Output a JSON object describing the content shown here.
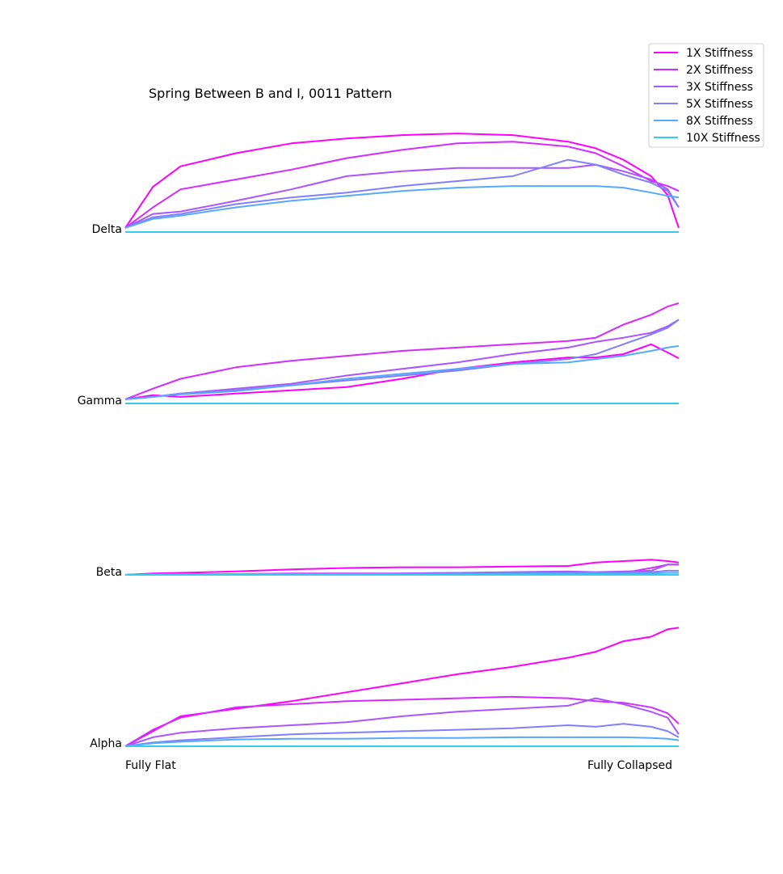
{
  "chart_data": {
    "type": "line",
    "title": "Spring Between B and I, 0011 Pattern",
    "xlabel_left": "Fully Flat",
    "xlabel_right": "Fully Collapsed",
    "xlim": [
      0,
      1
    ],
    "series_styles": [
      {
        "name": "1X Stiffness",
        "color": "#ff00ff"
      },
      {
        "name": "2X Stiffness",
        "color": "#d42bff"
      },
      {
        "name": "3X Stiffness",
        "color": "#aa55ff"
      },
      {
        "name": "5X Stiffness",
        "color": "#8080ff"
      },
      {
        "name": "8X Stiffness",
        "color": "#55aaff"
      },
      {
        "name": "10X Stiffness",
        "color": "#33ccee"
      }
    ],
    "panels": [
      {
        "label": "Delta",
        "ylim": [
          0,
          125
        ],
        "x": [
          0,
          0.05,
          0.1,
          0.2,
          0.3,
          0.4,
          0.5,
          0.6,
          0.7,
          0.8,
          0.85,
          0.9,
          0.95,
          0.98,
          1.0
        ],
        "series": [
          {
            "values": [
              5,
              55,
              80,
              96,
              108,
              114,
              118,
              120,
              118,
              110,
              102,
              88,
              68,
              45,
              5
            ]
          },
          {
            "values": [
              5,
              30,
              52,
              64,
              76,
              90,
              100,
              108,
              110,
              104,
              96,
              80,
              62,
              56,
              50
            ]
          },
          {
            "values": [
              5,
              22,
              25,
              38,
              52,
              68,
              74,
              78,
              78,
              78,
              82,
              74,
              64,
              52,
              30
            ]
          },
          {
            "values": [
              5,
              18,
              22,
              34,
              42,
              48,
              56,
              62,
              68,
              88,
              82,
              70,
              60,
              50,
              30
            ]
          },
          {
            "values": [
              5,
              16,
              20,
              30,
              38,
              44,
              50,
              54,
              56,
              56,
              56,
              54,
              48,
              44,
              42
            ]
          },
          {
            "values": [
              0,
              0,
              0,
              0,
              0,
              0,
              0,
              0,
              0,
              0,
              0,
              0,
              0,
              0,
              0
            ]
          }
        ]
      },
      {
        "label": "Gamma",
        "ylim": [
          0,
          125
        ],
        "x": [
          0,
          0.05,
          0.1,
          0.2,
          0.3,
          0.4,
          0.5,
          0.6,
          0.7,
          0.8,
          0.85,
          0.9,
          0.95,
          0.98,
          1.0
        ],
        "series": [
          {
            "values": [
              5,
              10,
              8,
              12,
              16,
              20,
              30,
              42,
              50,
              56,
              56,
              60,
              72,
              62,
              55
            ]
          },
          {
            "values": [
              5,
              18,
              30,
              44,
              52,
              58,
              64,
              68,
              72,
              76,
              80,
              96,
              108,
              118,
              122
            ]
          },
          {
            "values": [
              5,
              8,
              12,
              18,
              24,
              34,
              42,
              50,
              60,
              68,
              75,
              80,
              86,
              94,
              102
            ]
          },
          {
            "values": [
              5,
              8,
              12,
              16,
              22,
              28,
              34,
              40,
              48,
              54,
              60,
              72,
              84,
              92,
              102
            ]
          },
          {
            "values": [
              5,
              8,
              11,
              15,
              22,
              30,
              36,
              42,
              48,
              50,
              54,
              58,
              64,
              68,
              70
            ]
          },
          {
            "values": [
              0,
              0,
              0,
              0,
              0,
              0,
              0,
              0,
              0,
              0,
              0,
              0,
              0,
              0,
              0
            ]
          }
        ]
      },
      {
        "label": "Beta",
        "ylim": [
          0,
          60
        ],
        "x": [
          0,
          0.05,
          0.1,
          0.2,
          0.3,
          0.4,
          0.5,
          0.6,
          0.7,
          0.8,
          0.85,
          0.9,
          0.95,
          0.98,
          1.0
        ],
        "series": [
          {
            "values": [
              0,
              2,
              3,
              5,
              8,
              10,
              11,
              11,
              12,
              13,
              18,
              20,
              22,
              20,
              18
            ]
          },
          {
            "values": [
              0,
              1,
              1,
              1,
              2,
              2,
              2,
              3,
              3,
              3,
              3,
              3,
              10,
              15,
              15
            ]
          },
          {
            "values": [
              0,
              1,
              1,
              1,
              1,
              1,
              2,
              3,
              4,
              5,
              4,
              5,
              6,
              15,
              15
            ]
          },
          {
            "values": [
              0,
              1,
              1,
              1,
              1,
              1,
              1,
              2,
              2,
              3,
              3,
              3,
              4,
              6,
              6
            ]
          },
          {
            "values": [
              0,
              0,
              1,
              1,
              1,
              1,
              1,
              1,
              2,
              2,
              2,
              2,
              2,
              3,
              3
            ]
          },
          {
            "values": [
              0,
              0,
              0,
              0,
              0,
              0,
              0,
              0,
              0,
              0,
              0,
              0,
              0,
              0,
              0
            ]
          }
        ]
      },
      {
        "label": "Alpha",
        "ylim": [
          0,
          180
        ],
        "x": [
          0,
          0.05,
          0.1,
          0.2,
          0.3,
          0.4,
          0.5,
          0.6,
          0.7,
          0.8,
          0.85,
          0.9,
          0.95,
          0.98,
          1.0
        ],
        "series": [
          {
            "values": [
              0,
              20,
              40,
              50,
              60,
              72,
              84,
              96,
              106,
              118,
              126,
              140,
              146,
              156,
              158
            ]
          },
          {
            "values": [
              0,
              22,
              38,
              52,
              56,
              60,
              62,
              64,
              66,
              64,
              60,
              58,
              52,
              44,
              30
            ]
          },
          {
            "values": [
              0,
              12,
              18,
              24,
              28,
              32,
              40,
              46,
              50,
              54,
              64,
              56,
              46,
              38,
              16
            ]
          },
          {
            "values": [
              0,
              5,
              8,
              12,
              16,
              18,
              20,
              22,
              24,
              28,
              26,
              30,
              26,
              20,
              12
            ]
          },
          {
            "values": [
              0,
              4,
              6,
              9,
              10,
              10,
              11,
              11,
              12,
              12,
              12,
              12,
              11,
              10,
              8
            ]
          },
          {
            "values": [
              0,
              0,
              0,
              0,
              0,
              0,
              0,
              0,
              0,
              0,
              0,
              0,
              0,
              0,
              0
            ]
          }
        ]
      }
    ]
  }
}
